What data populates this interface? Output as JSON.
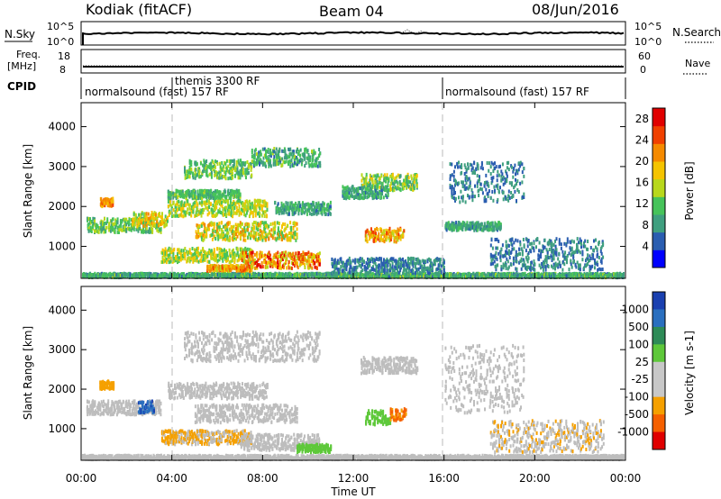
{
  "header": {
    "radar": "Kodiak (fitACF)",
    "beam": "Beam 04",
    "date": "08/Jun/2016"
  },
  "colors": {
    "power": [
      "#0000ff",
      "#2a5db0",
      "#3f9f7f",
      "#46c35a",
      "#b8d81c",
      "#f5c400",
      "#f58a00",
      "#f04000",
      "#e00000"
    ],
    "velocity": [
      "#1a40b0",
      "#2a6fbf",
      "#2e8b57",
      "#5ec83a",
      "#c8c8c8",
      "#c8c8c8",
      "#f5a000",
      "#f56000",
      "#e00000"
    ],
    "ground_scatter": "#bdbdbd"
  },
  "panels": {
    "nsky": {
      "left_label": "N.Sky",
      "right_label": "N.Search",
      "left_ticks": [
        "10^5",
        "10^0"
      ],
      "right_ticks": [
        "10^5",
        "10^0"
      ]
    },
    "freq": {
      "left_label": "Freq.",
      "left_unit": "[MHz]",
      "right_label": "Nave",
      "left_ticks": [
        "18",
        "8"
      ],
      "right_ticks": [
        "60",
        "0"
      ]
    },
    "cpid": {
      "label": "CPID",
      "segments": [
        "normalsound (fast) 157 RF",
        "themis 3300 RF",
        "normalsound (fast) 157 RF"
      ]
    }
  },
  "chart_data": [
    {
      "type": "heatmap",
      "name": "Power",
      "xlabel": "",
      "ylabel": "Slant Range [km]",
      "x_ticks": [
        "00:00",
        "04:00",
        "08:00",
        "12:00",
        "16:00",
        "20:00",
        "00:00"
      ],
      "y_ticks": [
        "1000",
        "2000",
        "3000",
        "4000"
      ],
      "ylim": [
        200,
        4600
      ],
      "x_range_hours": [
        0,
        24
      ],
      "colorbar": {
        "label": "Power [dB]",
        "ticks": [
          "4",
          "8",
          "12",
          "16",
          "20",
          "24",
          "28"
        ],
        "range": [
          0,
          30
        ]
      },
      "features": [
        {
          "t0": 0.0,
          "t1": 24.0,
          "r0": 220,
          "r1": 320,
          "v0": 6,
          "v1": 14
        },
        {
          "t0": 0.2,
          "t1": 3.5,
          "r0": 1350,
          "r1": 1700,
          "v0": 8,
          "v1": 16
        },
        {
          "t0": 0.8,
          "t1": 1.4,
          "r0": 2000,
          "r1": 2200,
          "v0": 18,
          "v1": 24
        },
        {
          "t0": 2.2,
          "t1": 3.8,
          "r0": 1500,
          "r1": 1850,
          "v0": 12,
          "v1": 22
        },
        {
          "t0": 3.8,
          "t1": 8.2,
          "r0": 1750,
          "r1": 2150,
          "v0": 10,
          "v1": 20
        },
        {
          "t0": 5.0,
          "t1": 9.5,
          "r0": 1150,
          "r1": 1600,
          "v0": 10,
          "v1": 22
        },
        {
          "t0": 8.5,
          "t1": 11.0,
          "r0": 1800,
          "r1": 2100,
          "v0": 6,
          "v1": 12
        },
        {
          "t0": 3.8,
          "t1": 7.0,
          "r0": 2200,
          "r1": 2400,
          "v0": 8,
          "v1": 14
        },
        {
          "t0": 4.5,
          "t1": 7.5,
          "r0": 2700,
          "r1": 3150,
          "v0": 8,
          "v1": 16
        },
        {
          "t0": 7.5,
          "t1": 10.5,
          "r0": 3000,
          "r1": 3450,
          "v0": 6,
          "v1": 14
        },
        {
          "t0": 3.5,
          "t1": 7.5,
          "r0": 600,
          "r1": 950,
          "v0": 10,
          "v1": 20
        },
        {
          "t0": 7.0,
          "t1": 10.5,
          "r0": 450,
          "r1": 850,
          "v0": 14,
          "v1": 28
        },
        {
          "t0": 5.5,
          "t1": 7.5,
          "r0": 380,
          "r1": 520,
          "v0": 16,
          "v1": 26
        },
        {
          "t0": 12.3,
          "t1": 14.8,
          "r0": 2400,
          "r1": 2800,
          "v0": 8,
          "v1": 18
        },
        {
          "t0": 11.5,
          "t1": 13.5,
          "r0": 2200,
          "r1": 2500,
          "v0": 6,
          "v1": 12
        },
        {
          "t0": 12.5,
          "t1": 14.2,
          "r0": 1100,
          "r1": 1450,
          "v0": 14,
          "v1": 26
        },
        {
          "t0": 16.0,
          "t1": 18.5,
          "r0": 1400,
          "r1": 1600,
          "v0": 6,
          "v1": 12
        },
        {
          "t0": 16.2,
          "t1": 19.5,
          "r0": 2100,
          "r1": 3100,
          "v0": 4,
          "v1": 10
        },
        {
          "t0": 18.0,
          "t1": 23.0,
          "r0": 400,
          "r1": 1200,
          "v0": 4,
          "v1": 10
        },
        {
          "t0": 11.0,
          "t1": 16.0,
          "r0": 320,
          "r1": 700,
          "v0": 4,
          "v1": 10
        }
      ]
    },
    {
      "type": "heatmap",
      "name": "Velocity",
      "xlabel": "Time UT",
      "ylabel": "Slant Range [km]",
      "x_ticks": [
        "00:00",
        "04:00",
        "08:00",
        "12:00",
        "16:00",
        "20:00",
        "00:00"
      ],
      "y_ticks": [
        "1000",
        "2000",
        "3000",
        "4000"
      ],
      "ylim": [
        200,
        4600
      ],
      "x_range_hours": [
        0,
        24
      ],
      "colorbar": {
        "label": "Velocity [m s-1]",
        "ticks": [
          "1000",
          "500",
          "100",
          "25",
          "-25",
          "-100",
          "-500",
          "-1000"
        ]
      },
      "features": [
        {
          "t0": 0.0,
          "t1": 24.0,
          "r0": 220,
          "r1": 320,
          "v0": 0,
          "v1": 0
        },
        {
          "t0": 0.2,
          "t1": 3.5,
          "r0": 1350,
          "r1": 1700,
          "v0": 0,
          "v1": 0
        },
        {
          "t0": 0.8,
          "t1": 1.4,
          "r0": 2000,
          "r1": 2200,
          "v0": -150,
          "v1": -80
        },
        {
          "t0": 2.5,
          "t1": 3.2,
          "r0": 1400,
          "r1": 1700,
          "v0": 300,
          "v1": 800
        },
        {
          "t0": 3.8,
          "t1": 8.2,
          "r0": 1750,
          "r1": 2150,
          "v0": 0,
          "v1": 0
        },
        {
          "t0": 5.0,
          "t1": 9.5,
          "r0": 1150,
          "r1": 1600,
          "v0": 0,
          "v1": 0
        },
        {
          "t0": 4.5,
          "t1": 10.5,
          "r0": 2700,
          "r1": 3450,
          "v0": 0,
          "v1": 0
        },
        {
          "t0": 3.5,
          "t1": 7.5,
          "r0": 600,
          "r1": 950,
          "v0": -150,
          "v1": 0
        },
        {
          "t0": 7.0,
          "t1": 10.5,
          "r0": 450,
          "r1": 850,
          "v0": 0,
          "v1": 0
        },
        {
          "t0": 9.5,
          "t1": 11.0,
          "r0": 400,
          "r1": 600,
          "v0": 60,
          "v1": 150
        },
        {
          "t0": 12.3,
          "t1": 14.8,
          "r0": 2400,
          "r1": 2800,
          "v0": 0,
          "v1": 0
        },
        {
          "t0": 12.5,
          "t1": 13.6,
          "r0": 1100,
          "r1": 1450,
          "v0": 60,
          "v1": 120
        },
        {
          "t0": 13.6,
          "t1": 14.3,
          "r0": 1200,
          "r1": 1500,
          "v0": -300,
          "v1": -120
        },
        {
          "t0": 16.0,
          "t1": 19.5,
          "r0": 1400,
          "r1": 3100,
          "v0": 0,
          "v1": 0
        },
        {
          "t0": 18.0,
          "t1": 23.0,
          "r0": 400,
          "r1": 1200,
          "v0": -80,
          "v1": 0
        }
      ]
    }
  ]
}
